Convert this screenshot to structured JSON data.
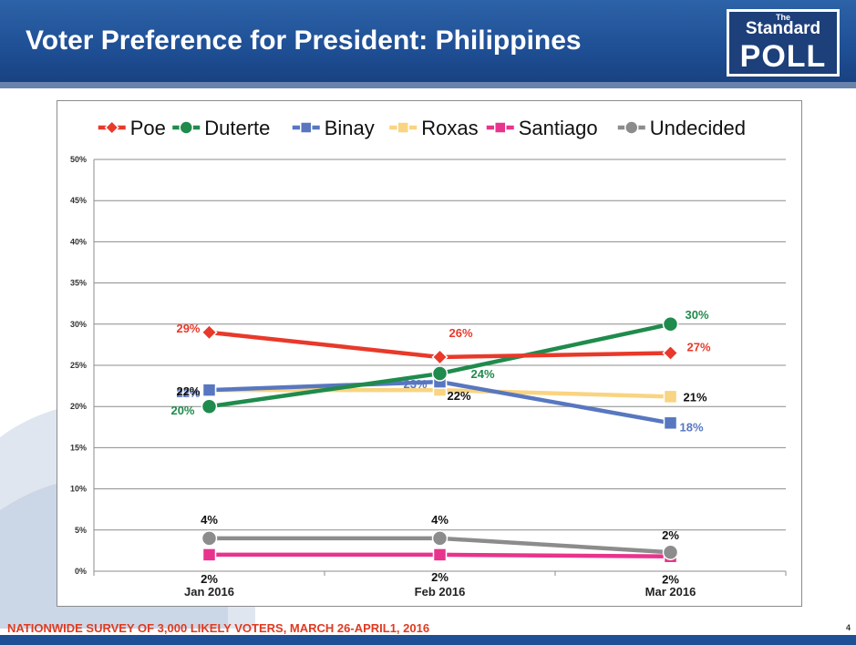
{
  "header": {
    "title": "Voter Preference for President: Philippines",
    "logo": {
      "small_text": "The",
      "line1": "Standard",
      "line2": "POLL"
    }
  },
  "footer": {
    "note": "NATIONWIDE SURVEY OF 3,000 LIKELY VOTERS, MARCH 26-APRIL1, 2016",
    "page_number": "4"
  },
  "chart_data": {
    "type": "line",
    "title": "",
    "xlabel": "",
    "ylabel": "",
    "categories": [
      "Jan 2016",
      "Feb 2016",
      "Mar 2016"
    ],
    "ylim": [
      0,
      50
    ],
    "yticks": [
      "0%",
      "5%",
      "10%",
      "15%",
      "20%",
      "25%",
      "30%",
      "35%",
      "40%",
      "45%",
      "50%"
    ],
    "legend_position": "top",
    "grid": true,
    "series": [
      {
        "name": "Poe",
        "color": "#e8392a",
        "marker": "diamond",
        "values": [
          29,
          26,
          26.5
        ],
        "labels": [
          "29%",
          "26%",
          "27%"
        ]
      },
      {
        "name": "Duterte",
        "color": "#1f8b4c",
        "marker": "circle",
        "values": [
          20,
          24,
          30
        ],
        "labels": [
          "20%",
          "24%",
          "30%"
        ]
      },
      {
        "name": "Binay",
        "color": "#5877c0",
        "marker": "square",
        "values": [
          22,
          23,
          18
        ],
        "labels": [
          "22%",
          "23%",
          "18%"
        ]
      },
      {
        "name": "Roxas",
        "color": "#f9d481",
        "marker": "square",
        "values": [
          22,
          22,
          21.2
        ],
        "labels": [
          "22%",
          "22%",
          "21%"
        ]
      },
      {
        "name": "Santiago",
        "color": "#e8348c",
        "marker": "square",
        "values": [
          2,
          2,
          1.8
        ],
        "labels": [
          "2%",
          "2%",
          "2%"
        ]
      },
      {
        "name": "Undecided",
        "color": "#8c8c8c",
        "marker": "circle",
        "values": [
          4,
          4,
          2.3
        ],
        "labels": [
          "4%",
          "4%",
          "2%"
        ]
      }
    ]
  }
}
